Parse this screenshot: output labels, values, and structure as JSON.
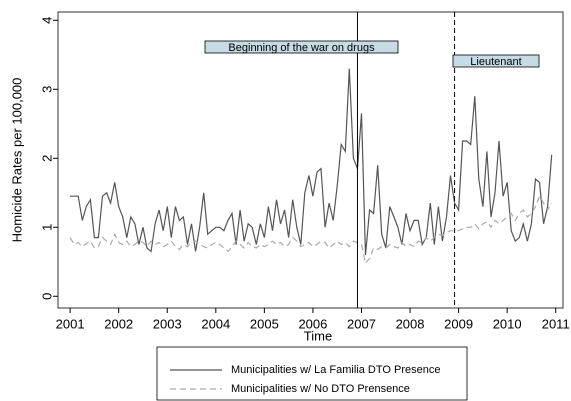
{
  "chart_data": {
    "type": "line",
    "x_label": "Time",
    "y_label": "Homicide Rates per 100,000",
    "x": [
      2001,
      2001.083,
      2001.167,
      2001.25,
      2001.333,
      2001.417,
      2001.5,
      2001.583,
      2001.667,
      2001.75,
      2001.833,
      2001.917,
      2002,
      2002.083,
      2002.167,
      2002.25,
      2002.333,
      2002.417,
      2002.5,
      2002.583,
      2002.667,
      2002.75,
      2002.833,
      2002.917,
      2003,
      2003.083,
      2003.167,
      2003.25,
      2003.333,
      2003.417,
      2003.5,
      2003.583,
      2003.667,
      2003.75,
      2003.833,
      2003.917,
      2004,
      2004.083,
      2004.167,
      2004.25,
      2004.333,
      2004.417,
      2004.5,
      2004.583,
      2004.667,
      2004.75,
      2004.833,
      2004.917,
      2005,
      2005.083,
      2005.167,
      2005.25,
      2005.333,
      2005.417,
      2005.5,
      2005.583,
      2005.667,
      2005.75,
      2005.833,
      2005.917,
      2006,
      2006.083,
      2006.167,
      2006.25,
      2006.333,
      2006.417,
      2006.5,
      2006.583,
      2006.667,
      2006.75,
      2006.833,
      2006.917,
      2007,
      2007.083,
      2007.167,
      2007.25,
      2007.333,
      2007.417,
      2007.5,
      2007.583,
      2007.667,
      2007.75,
      2007.833,
      2007.917,
      2008,
      2008.083,
      2008.167,
      2008.25,
      2008.333,
      2008.417,
      2008.5,
      2008.583,
      2008.667,
      2008.75,
      2008.833,
      2008.917,
      2009,
      2009.083,
      2009.167,
      2009.25,
      2009.333,
      2009.417,
      2009.5,
      2009.583,
      2009.667,
      2009.75,
      2009.833,
      2009.917,
      2010,
      2010.083,
      2010.167,
      2010.25,
      2010.333,
      2010.417,
      2010.5,
      2010.583,
      2010.667,
      2010.75,
      2010.833,
      2010.917
    ],
    "series": [
      {
        "name": "Municipalities w/ La Familia DTO Presence",
        "color": "#555555",
        "dash": false,
        "values": [
          1.45,
          1.45,
          1.45,
          1.1,
          1.3,
          1.4,
          0.85,
          0.85,
          1.45,
          1.5,
          1.35,
          1.65,
          1.3,
          1.15,
          0.85,
          1.15,
          1.05,
          0.75,
          1.0,
          0.7,
          0.65,
          1.05,
          1.25,
          0.95,
          1.3,
          0.85,
          1.3,
          1.1,
          1.15,
          0.75,
          1.05,
          0.65,
          1.0,
          1.5,
          0.9,
          0.95,
          1.0,
          1.0,
          0.95,
          1.1,
          1.2,
          0.75,
          1.25,
          0.8,
          1.05,
          1.0,
          0.75,
          1.05,
          0.85,
          1.3,
          0.95,
          1.4,
          1.05,
          1.25,
          0.85,
          1.4,
          1.0,
          0.75,
          1.5,
          1.75,
          1.45,
          1.8,
          1.85,
          1.0,
          1.35,
          1.1,
          1.6,
          2.2,
          2.1,
          3.3,
          2.0,
          1.85,
          2.65,
          0.6,
          1.25,
          1.2,
          1.9,
          0.9,
          0.7,
          1.3,
          1.15,
          1.0,
          0.75,
          1.2,
          0.95,
          1.1,
          1.1,
          0.75,
          0.85,
          1.35,
          0.75,
          1.3,
          0.8,
          1.15,
          1.75,
          1.35,
          1.25,
          2.25,
          2.25,
          2.2,
          2.9,
          1.7,
          1.3,
          2.1,
          1.15,
          1.5,
          2.25,
          1.45,
          1.65,
          0.95,
          0.8,
          0.85,
          1.05,
          0.8,
          1.05,
          1.7,
          1.65,
          1.05,
          1.3,
          2.05
        ]
      },
      {
        "name": "Municipalities w/ No DTO Prensence",
        "color": "#aaaaaa",
        "dash": true,
        "values": [
          0.85,
          0.75,
          0.78,
          0.72,
          0.76,
          0.8,
          0.7,
          0.72,
          0.85,
          0.8,
          0.75,
          0.9,
          0.78,
          0.75,
          0.8,
          0.72,
          0.75,
          0.8,
          0.78,
          0.72,
          0.8,
          0.75,
          0.78,
          0.72,
          0.75,
          0.8,
          0.72,
          0.68,
          0.75,
          0.72,
          0.78,
          0.8,
          0.75,
          0.72,
          0.7,
          0.75,
          0.78,
          0.75,
          0.7,
          0.65,
          0.72,
          0.8,
          0.75,
          0.7,
          0.78,
          0.72,
          0.7,
          0.75,
          0.72,
          0.75,
          0.8,
          0.75,
          0.78,
          0.72,
          0.75,
          0.85,
          0.8,
          0.72,
          0.75,
          0.78,
          0.72,
          0.75,
          0.8,
          0.78,
          0.7,
          0.75,
          0.8,
          0.75,
          0.78,
          0.72,
          0.8,
          0.78,
          0.75,
          0.48,
          0.55,
          0.7,
          0.68,
          0.72,
          0.7,
          0.75,
          0.72,
          0.7,
          0.78,
          0.72,
          0.75,
          0.72,
          0.8,
          0.78,
          0.85,
          0.8,
          0.85,
          0.9,
          0.88,
          0.92,
          0.95,
          0.95,
          0.95,
          0.98,
          1.0,
          1.0,
          1.05,
          0.98,
          1.05,
          1.08,
          1.0,
          1.1,
          1.05,
          1.1,
          1.15,
          1.2,
          1.1,
          1.2,
          1.25,
          1.15,
          1.2,
          1.3,
          1.45,
          1.35,
          1.25,
          1.35
        ]
      }
    ],
    "xlim": [
      2000.75,
      2011.15
    ],
    "xticks": [
      2001,
      2002,
      2003,
      2004,
      2005,
      2006,
      2007,
      2008,
      2009,
      2010,
      2011
    ],
    "ylim": [
      -0.17,
      4.12
    ],
    "yticks": [
      0,
      1,
      2,
      3,
      4
    ],
    "events": [
      {
        "x": 2006.917,
        "dash": false,
        "label": "Beginning of the war on drugs"
      },
      {
        "x": 2008.917,
        "dash": true,
        "label": "Lieutenant"
      }
    ]
  }
}
